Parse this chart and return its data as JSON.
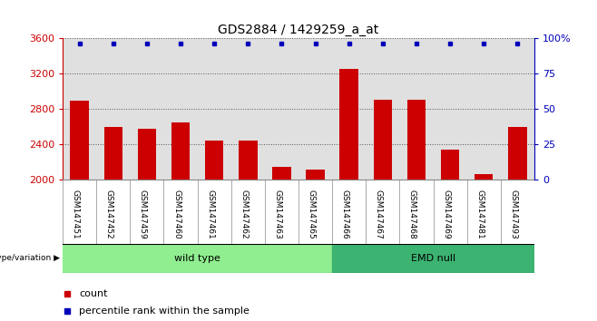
{
  "title": "GDS2884 / 1429259_a_at",
  "samples": [
    "GSM147451",
    "GSM147452",
    "GSM147459",
    "GSM147460",
    "GSM147461",
    "GSM147462",
    "GSM147463",
    "GSM147465",
    "GSM147466",
    "GSM147467",
    "GSM147468",
    "GSM147469",
    "GSM147481",
    "GSM147493"
  ],
  "counts": [
    2900,
    2600,
    2580,
    2650,
    2440,
    2440,
    2150,
    2120,
    3260,
    2910,
    2910,
    2340,
    2060,
    2600
  ],
  "percentile_ranks": [
    98,
    98,
    98,
    98,
    98,
    93,
    95,
    98,
    98,
    98,
    98,
    95,
    98,
    98
  ],
  "groups": [
    {
      "label": "wild type",
      "start": 0,
      "end": 8,
      "color": "#90EE90"
    },
    {
      "label": "EMD null",
      "start": 8,
      "end": 14,
      "color": "#3CB371"
    }
  ],
  "ylim": [
    2000,
    3600
  ],
  "yticks": [
    2000,
    2400,
    2800,
    3200,
    3600
  ],
  "right_yticks": [
    0,
    25,
    50,
    75,
    100
  ],
  "right_ylim": [
    0,
    100
  ],
  "bar_color": "#CC0000",
  "marker_color": "#0000BB",
  "grid_color": "#555555",
  "left_tick_color": "#CC0000",
  "right_tick_color": "#0000BB",
  "bg_color": "#FFFFFF",
  "bar_bg_color": "#E0E0E0",
  "tick_bg_color": "#C8C8C8",
  "legend_count_color": "#CC0000",
  "legend_pct_color": "#0000BB"
}
